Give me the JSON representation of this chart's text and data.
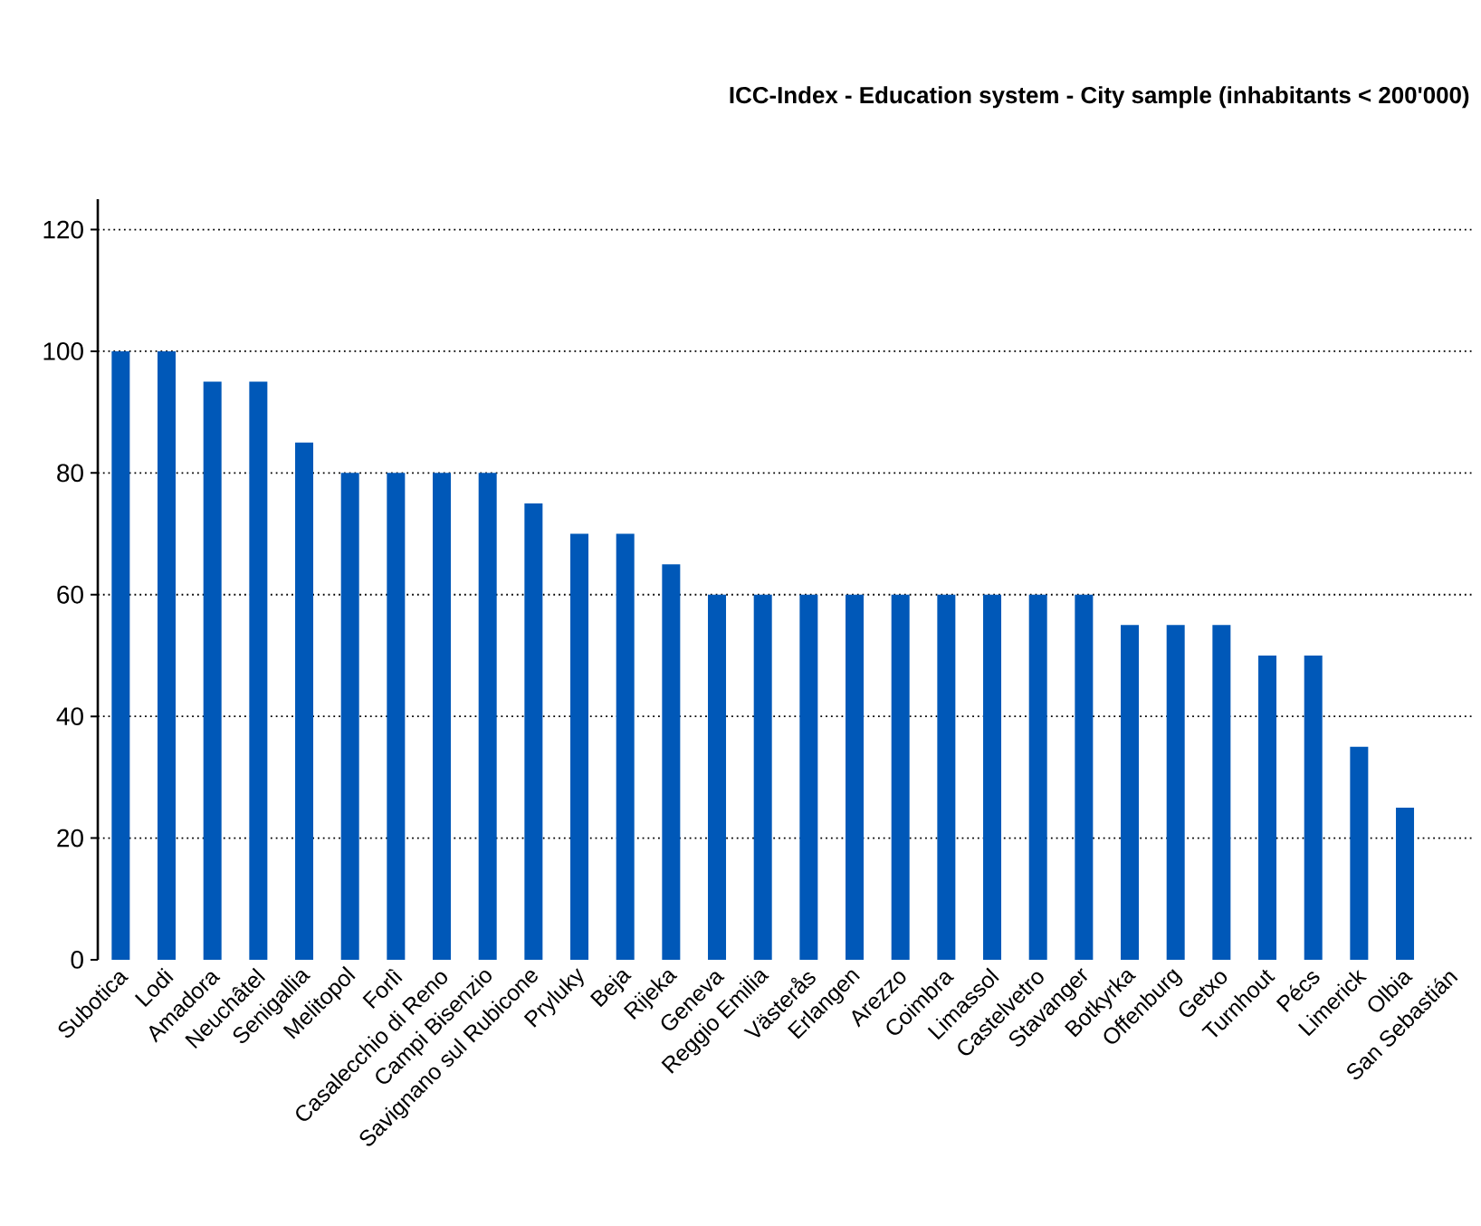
{
  "chart_data": {
    "type": "bar",
    "title": "ICC-Index - Education system - City sample (inhabitants < 200'000)",
    "categories": [
      "Subotica",
      "Lodi",
      "Amadora",
      "Neuchâtel",
      "Senigallia",
      "Melitopol",
      "Forlì",
      "Casalecchio di Reno",
      "Campi Bisenzio",
      "Savignano sul Rubicone",
      "Pryluky",
      "Beja",
      "Rijeka",
      "Geneva",
      "Reggio Emilia",
      "Västerås",
      "Erlangen",
      "Arezzo",
      "Coimbra",
      "Limassol",
      "Castelvetro",
      "Stavanger",
      "Botkyrka",
      "Offenburg",
      "Getxo",
      "Turnhout",
      "Pécs",
      "Limerick",
      "Olbia",
      "San Sebastián"
    ],
    "values": [
      100,
      100,
      95,
      95,
      85,
      80,
      80,
      80,
      80,
      75,
      70,
      70,
      65,
      60,
      60,
      60,
      60,
      60,
      60,
      60,
      60,
      60,
      55,
      55,
      55,
      50,
      50,
      35,
      25,
      0
    ],
    "color": "#0058b8",
    "ylim": [
      0,
      125
    ],
    "yticks": [
      0,
      20,
      40,
      60,
      80,
      100,
      120
    ],
    "grid": "y"
  }
}
